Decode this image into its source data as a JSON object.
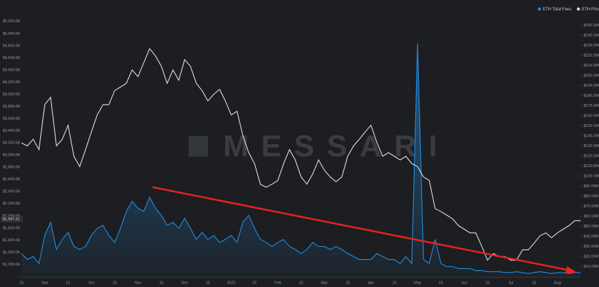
{
  "chart_data": {
    "type": "line",
    "watermark": "MESSARI",
    "categories": [
      "15",
      null,
      null,
      null,
      "Sep",
      null,
      null,
      null,
      "15",
      null,
      null,
      null,
      "Oct",
      null,
      null,
      null,
      "15",
      null,
      null,
      null,
      "Nov",
      null,
      null,
      null,
      "15",
      null,
      null,
      null,
      "Dec",
      null,
      null,
      null,
      "15",
      null,
      null,
      null,
      "2022",
      null,
      null,
      null,
      "15",
      null,
      null,
      null,
      "Feb",
      null,
      null,
      null,
      "15",
      null,
      null,
      null,
      "Mar",
      null,
      null,
      null,
      "15",
      null,
      null,
      null,
      "Apr",
      null,
      null,
      null,
      "15",
      null,
      null,
      null,
      "May",
      null,
      null,
      null,
      "15",
      null,
      null,
      null,
      "Jun",
      null,
      null,
      null,
      "15",
      null,
      null,
      null,
      "Jul",
      null,
      null,
      null,
      "15",
      null,
      null,
      null,
      "Aug",
      null,
      null,
      null,
      null
    ],
    "series": [
      {
        "name": "ETH Total Fees",
        "color": "#1f8fe5",
        "axis": "y2",
        "values": [
          23,
          17,
          20,
          13,
          41,
          54,
          27,
          37,
          44,
          30,
          27,
          30,
          41,
          48,
          51,
          41,
          34,
          48,
          65,
          75,
          68,
          65,
          79,
          68,
          61,
          51,
          54,
          48,
          58,
          48,
          37,
          44,
          37,
          41,
          34,
          37,
          41,
          34,
          54,
          61,
          48,
          37,
          34,
          30,
          34,
          37,
          30,
          27,
          23,
          27,
          34,
          30,
          30,
          27,
          30,
          27,
          23,
          20,
          17,
          17,
          17,
          23,
          20,
          17,
          17,
          13,
          20,
          13,
          232,
          17,
          13,
          37,
          13,
          10,
          10,
          8,
          8,
          8,
          6,
          6,
          5,
          5,
          5,
          4,
          4,
          5,
          4,
          3,
          4,
          5,
          4,
          3,
          4,
          4,
          3,
          4,
          4
        ]
      },
      {
        "name": "ETH Price",
        "color": "#e2e2e2",
        "values": [
          3200,
          3150,
          3260,
          3090,
          3830,
          3950,
          3150,
          3260,
          3490,
          2980,
          2810,
          3090,
          3380,
          3660,
          3830,
          3830,
          4060,
          4120,
          4180,
          4400,
          4290,
          4520,
          4750,
          4630,
          4460,
          4180,
          4400,
          4230,
          4570,
          4460,
          4180,
          4060,
          3890,
          4000,
          4080,
          3890,
          3660,
          3720,
          3320,
          3040,
          2860,
          2520,
          2470,
          2520,
          2580,
          2860,
          3090,
          2920,
          2640,
          2520,
          2690,
          2920,
          2750,
          2640,
          2560,
          2640,
          2980,
          3150,
          3260,
          3380,
          3490,
          3210,
          2980,
          3040,
          2980,
          2920,
          2980,
          2860,
          2810,
          2640,
          2580,
          2120,
          2070,
          2010,
          1950,
          1840,
          1780,
          1720,
          1720,
          1500,
          1270,
          1380,
          1330,
          1330,
          1270,
          1270,
          1440,
          1440,
          1550,
          1670,
          1720,
          1640,
          1720,
          1780,
          1840,
          1920,
          1920
        ]
      }
    ],
    "current_price": {
      "value": 1947.31,
      "label": "$1,947.31"
    },
    "ylim": [
      1000,
      5300
    ],
    "yticks": [
      {
        "value": 1200,
        "label": "$1,200.00"
      },
      {
        "value": 1400,
        "label": "$1,400.00"
      },
      {
        "value": 1600,
        "label": "$1,600.00"
      },
      {
        "value": 1800,
        "label": "$1,800.00"
      },
      {
        "value": 2000,
        "label": "$2,000.00"
      },
      {
        "value": 2200,
        "label": "$2,200.00"
      },
      {
        "value": 2400,
        "label": "$2,400.00"
      },
      {
        "value": 2600,
        "label": "$2,600.00"
      },
      {
        "value": 2800,
        "label": "$2,800.00"
      },
      {
        "value": 3000,
        "label": "$3,000.00"
      },
      {
        "value": 3200,
        "label": "$3,200.00"
      },
      {
        "value": 3400,
        "label": "$3,400.00"
      },
      {
        "value": 3600,
        "label": "$3,600.00"
      },
      {
        "value": 3800,
        "label": "$3,800.00"
      },
      {
        "value": 4000,
        "label": "$4,000.00"
      },
      {
        "value": 4200,
        "label": "$4,200.00"
      },
      {
        "value": 4400,
        "label": "$4,400.00"
      },
      {
        "value": 4600,
        "label": "$4,600.00"
      },
      {
        "value": 4800,
        "label": "$4,800.00"
      },
      {
        "value": 5000,
        "label": "$5,000.00"
      },
      {
        "value": 5200,
        "label": "$5,200.00"
      }
    ],
    "y2lim": [
      0,
      260
    ],
    "y2ticks": [
      {
        "value": 10,
        "label": "$10.00M"
      },
      {
        "value": 20,
        "label": "$20.00M"
      },
      {
        "value": 30,
        "label": "$30.00M"
      },
      {
        "value": 40,
        "label": "$40.00M"
      },
      {
        "value": 50,
        "label": "$50.00M"
      },
      {
        "value": 60,
        "label": "$60.00M"
      },
      {
        "value": 70,
        "label": "$70.00M"
      },
      {
        "value": 80,
        "label": "$80.00M"
      },
      {
        "value": 90,
        "label": "$90.00M"
      },
      {
        "value": 100,
        "label": "$100.00M"
      },
      {
        "value": 110,
        "label": "$110.00M"
      },
      {
        "value": 120,
        "label": "$120.00M"
      },
      {
        "value": 130,
        "label": "$130.00M"
      },
      {
        "value": 140,
        "label": "$140.00M"
      },
      {
        "value": 150,
        "label": "$150.00M"
      },
      {
        "value": 160,
        "label": "$160.00M"
      },
      {
        "value": 170,
        "label": "$170.00M"
      },
      {
        "value": 180,
        "label": "$180.00M"
      },
      {
        "value": 190,
        "label": "$190.00M"
      },
      {
        "value": 200,
        "label": "$200.00M"
      },
      {
        "value": 210,
        "label": "$210.00M"
      },
      {
        "value": 220,
        "label": "$220.00M"
      },
      {
        "value": 230,
        "label": "$230.00M"
      },
      {
        "value": 240,
        "label": "$240.00M"
      },
      {
        "value": 250,
        "label": "$250.00M"
      }
    ],
    "legend": "top-right"
  }
}
